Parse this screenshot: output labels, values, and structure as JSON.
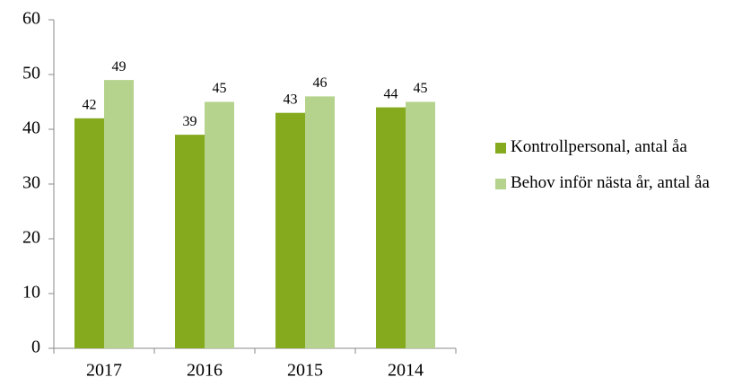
{
  "chart_data": {
    "type": "bar",
    "categories": [
      "2017",
      "2016",
      "2015",
      "2014"
    ],
    "series": [
      {
        "name": "Kontrollpersonal, antal åa",
        "color": "#86aa1e",
        "values": [
          42,
          39,
          43,
          44
        ]
      },
      {
        "name": "Behov inför nästa år, antal åa",
        "color": "#b5d38c",
        "values": [
          49,
          45,
          46,
          45
        ]
      }
    ],
    "ylim": [
      0,
      60
    ],
    "yticks": [
      0,
      10,
      20,
      30,
      40,
      50,
      60
    ],
    "legend": "right",
    "grid": false
  }
}
